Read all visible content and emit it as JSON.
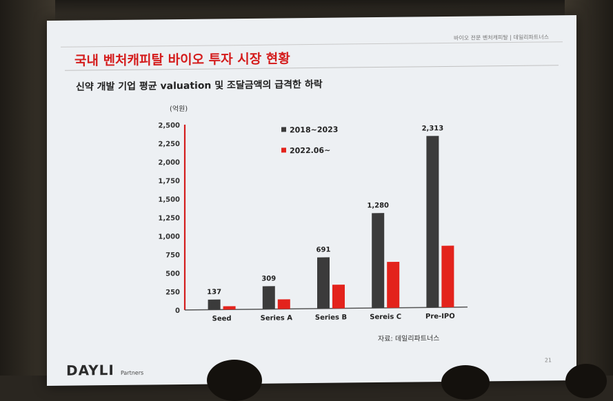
{
  "header": {
    "caption": "바이오 전문 벤처캐피탈 | 데일리파트너스"
  },
  "slide": {
    "title": "국내 벤처캐피탈 바이오 투자 시장 현황",
    "subtitle": "신약 개발 기업 평균 valuation 및 조달금액의 급격한 하락",
    "source": "자료: 데일리파트너스",
    "page_number": "21",
    "logo_text": "DAYLI",
    "logo_sub": "Partners"
  },
  "chart_data": {
    "type": "bar",
    "unit_label": "(억원)",
    "categories": [
      "Seed",
      "Series A",
      "Series B",
      "Sereis C",
      "Pre-IPO"
    ],
    "series": [
      {
        "name": "2018~2023",
        "values": [
          137,
          309,
          691,
          1280,
          2313
        ],
        "color": "#3b3b3b"
      },
      {
        "name": "2022.06~",
        "values": [
          45,
          130,
          320,
          620,
          830
        ],
        "color": "#e3231c"
      }
    ],
    "data_labels": [
      "137",
      "309",
      "691",
      "1,280",
      "2,313"
    ],
    "ylim": [
      0,
      2500
    ],
    "yticks": [
      "0",
      "250",
      "500",
      "750",
      "1,000",
      "1,250",
      "1,500",
      "1,750",
      "2,000",
      "2,250",
      "2,500"
    ],
    "grid": false,
    "legend_position": "top-center"
  }
}
